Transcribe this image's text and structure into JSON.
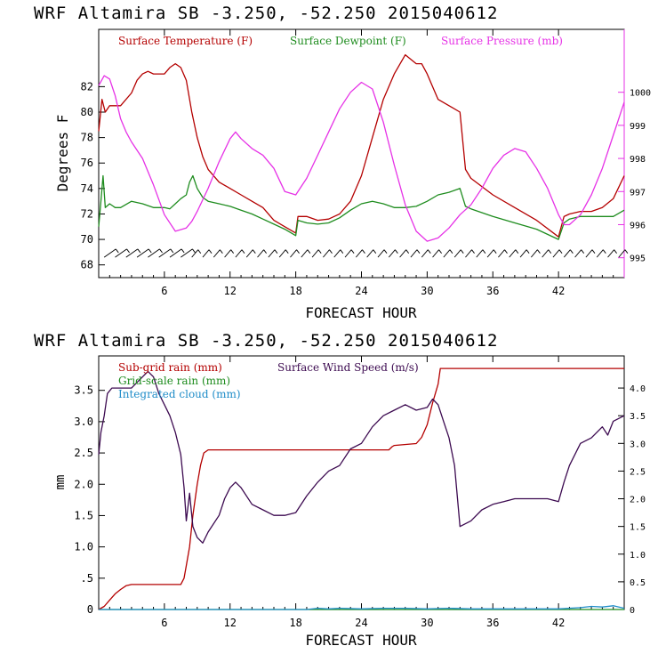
{
  "chart_data": [
    {
      "type": "line",
      "title": "WRF   Altamira  SB  -3.250, -52.250  2015040612",
      "xlabel": "FORECAST HOUR",
      "ylabel": "Degrees F",
      "xlim": [
        0,
        48
      ],
      "ylim": [
        67,
        86.5
      ],
      "y2lim": [
        994.4,
        1001.9
      ],
      "x_ticks": [
        6,
        12,
        18,
        24,
        30,
        36,
        42
      ],
      "y_ticks": [
        68,
        70,
        72,
        74,
        76,
        78,
        80,
        82
      ],
      "y2_ticks": [
        995,
        996,
        997,
        998,
        999,
        1000
      ],
      "y2_label": "",
      "colors": {
        "temperature": "#b40000",
        "dewpoint": "#1e8c1e",
        "pressure": "#e632e6"
      },
      "series": [
        {
          "name": "Surface Temperature (F)",
          "color": "#b40000",
          "axis": "left",
          "x": [
            0,
            0.3,
            0.6,
            1,
            1.5,
            2,
            3,
            3.5,
            4,
            4.5,
            5,
            5.5,
            6,
            6.5,
            7,
            7.5,
            8,
            8.5,
            9,
            9.5,
            10,
            11,
            12,
            13,
            14,
            15,
            16,
            17,
            18,
            18.2,
            19,
            20,
            21,
            22,
            23,
            24,
            25,
            26,
            27,
            28,
            29,
            29.5,
            30,
            30.5,
            31,
            32,
            33,
            33.5,
            34,
            36,
            38,
            40,
            42,
            42.5,
            43,
            44,
            45,
            46,
            47,
            48
          ],
          "y": [
            78.5,
            81,
            80,
            80.5,
            80.5,
            80.5,
            81.5,
            82.5,
            83,
            83.2,
            83,
            83,
            83,
            83.5,
            83.8,
            83.5,
            82.5,
            80,
            78,
            76.5,
            75.5,
            74.5,
            74,
            73.5,
            73,
            72.5,
            71.5,
            71,
            70.5,
            71.8,
            71.8,
            71.5,
            71.6,
            72,
            73,
            75,
            78,
            81,
            83,
            84.5,
            83.8,
            83.8,
            83,
            82,
            81,
            80.5,
            80,
            75.5,
            74.8,
            73.5,
            72.5,
            71.5,
            70.2,
            71.8,
            72,
            72.2,
            72.2,
            72.5,
            73.2,
            75
          ]
        },
        {
          "name": "Surface Dewpoint (F)",
          "color": "#1e8c1e",
          "axis": "left",
          "x": [
            0,
            0.2,
            0.4,
            0.6,
            1,
            1.5,
            2,
            3,
            4,
            5,
            6,
            6.5,
            7,
            7.5,
            8,
            8.3,
            8.6,
            9,
            9.5,
            10,
            11,
            12,
            13,
            14,
            15,
            16,
            17,
            18,
            18.2,
            19,
            20,
            21,
            22,
            23,
            24,
            25,
            26,
            27,
            28,
            29,
            30,
            31,
            32,
            33,
            33.5,
            34,
            36,
            38,
            40,
            42,
            42.5,
            43,
            44,
            45,
            46,
            47,
            48
          ],
          "y": [
            71,
            73,
            75,
            72.5,
            72.8,
            72.5,
            72.5,
            73,
            72.8,
            72.5,
            72.5,
            72.4,
            72.8,
            73.2,
            73.5,
            74.5,
            75,
            74,
            73.3,
            73,
            72.8,
            72.6,
            72.3,
            72,
            71.6,
            71.2,
            70.8,
            70.3,
            71.5,
            71.3,
            71.2,
            71.3,
            71.7,
            72.3,
            72.8,
            73,
            72.8,
            72.5,
            72.5,
            72.6,
            73,
            73.5,
            73.7,
            74,
            72.6,
            72.4,
            71.8,
            71.3,
            70.8,
            70,
            71.3,
            71.6,
            71.8,
            71.8,
            71.8,
            71.8,
            72.3
          ]
        },
        {
          "name": "Surface Pressure (mb)",
          "color": "#e632e6",
          "axis": "right",
          "x": [
            0,
            0.5,
            1,
            1.5,
            2,
            2.5,
            3,
            4,
            5,
            6,
            7,
            8,
            8.5,
            9,
            10,
            11,
            12,
            12.5,
            13,
            14,
            15,
            16,
            17,
            18,
            19,
            20,
            21,
            22,
            23,
            24,
            25,
            26,
            27,
            28,
            29,
            30,
            31,
            32,
            33,
            34,
            35,
            36,
            37,
            38,
            39,
            40,
            41,
            42,
            42.5,
            43,
            44,
            45,
            46,
            47,
            48
          ],
          "y": [
            1000.2,
            1000.5,
            1000.4,
            999.9,
            999.2,
            998.8,
            998.5,
            998,
            997.2,
            996.3,
            995.8,
            995.9,
            996.1,
            996.4,
            997.1,
            997.9,
            998.6,
            998.8,
            998.6,
            998.3,
            998.1,
            997.7,
            997,
            996.9,
            997.4,
            998.1,
            998.8,
            999.5,
            1000,
            1000.3,
            1000.1,
            999.1,
            997.8,
            996.6,
            995.8,
            995.5,
            995.6,
            995.9,
            996.3,
            996.6,
            997.1,
            997.7,
            998.1,
            998.3,
            998.2,
            997.7,
            997.1,
            996.3,
            996,
            996,
            996.3,
            996.9,
            997.7,
            998.7,
            999.7
          ]
        }
      ]
    },
    {
      "type": "line",
      "title": "WRF   Altamira  SB  -3.250, -52.250  2015040612",
      "xlabel": "FORECAST HOUR",
      "ylabel": "mm",
      "xlim": [
        0,
        48
      ],
      "ylim": [
        0,
        4.05
      ],
      "y2lim": [
        0,
        4.58
      ],
      "x_ticks": [
        6,
        12,
        18,
        24,
        30,
        36,
        42
      ],
      "y_ticks": [
        0,
        0.5,
        1.0,
        1.5,
        2.0,
        2.5,
        3.0,
        3.5
      ],
      "y_tick_labels": [
        "0",
        ".5",
        "1.0",
        "1.5",
        "2.0",
        "2.5",
        "3.0",
        "3.5"
      ],
      "y2_ticks": [
        0,
        0.5,
        1.0,
        1.5,
        2.0,
        2.5,
        3.0,
        3.5,
        4.0
      ],
      "y2_tick_labels": [
        "0",
        "0.5",
        "1.0",
        "1.5",
        "2.0",
        "2.5",
        "3.0",
        "3.5",
        "4.0"
      ],
      "colors": {
        "subgrid": "#b40000",
        "gridscale": "#1e8c1e",
        "cloud": "#1e8cc8",
        "wind": "#3c0a50"
      },
      "series": [
        {
          "name": "Sub-grid rain (mm)",
          "color": "#b40000",
          "axis": "left",
          "x": [
            0,
            0.5,
            1,
            1.5,
            2,
            2.5,
            3,
            5,
            7.5,
            7.8,
            8,
            8.3,
            8.6,
            9,
            9.3,
            9.6,
            10,
            20,
            26.5,
            26.8,
            27,
            29,
            29.5,
            30,
            30.5,
            31,
            31.2,
            35,
            48
          ],
          "y": [
            0,
            0.05,
            0.15,
            0.25,
            0.32,
            0.38,
            0.4,
            0.4,
            0.4,
            0.5,
            0.7,
            1.0,
            1.5,
            2.0,
            2.3,
            2.5,
            2.55,
            2.55,
            2.55,
            2.6,
            2.62,
            2.65,
            2.75,
            2.95,
            3.3,
            3.6,
            3.85,
            3.85,
            3.85
          ]
        },
        {
          "name": "Grid-scale rain (mm)",
          "color": "#1e8c1e",
          "axis": "left",
          "x": [
            0,
            48
          ],
          "y": [
            0,
            0
          ]
        },
        {
          "name": "Integrated cloud (mm)",
          "color": "#1e8cc8",
          "axis": "left",
          "x": [
            0,
            19,
            20,
            21,
            22,
            24,
            26,
            28,
            30,
            32,
            34,
            36,
            38,
            40,
            42,
            44,
            45,
            46,
            47,
            48
          ],
          "y": [
            0,
            0,
            0.02,
            0.01,
            0.02,
            0.01,
            0.02,
            0.02,
            0.01,
            0.02,
            0.01,
            0.01,
            0.01,
            0.01,
            0.01,
            0.03,
            0.05,
            0.04,
            0.06,
            0.02
          ]
        },
        {
          "name": "Surface Wind Speed (m/s)",
          "color": "#3c0a50",
          "axis": "right",
          "x": [
            0,
            0.2,
            0.5,
            0.8,
            1.2,
            2,
            3,
            4,
            4.5,
            5,
            5.5,
            6,
            6.5,
            7,
            7.5,
            7.8,
            8,
            8.3,
            8.6,
            9,
            9.5,
            10,
            11,
            11.5,
            12,
            12.5,
            13,
            14,
            15,
            16,
            17,
            18,
            19,
            20,
            21,
            22,
            23,
            24,
            25,
            26,
            27,
            28,
            29,
            30,
            30.5,
            31,
            31.5,
            32,
            32.5,
            33,
            34,
            35,
            36,
            37,
            38,
            39,
            40,
            41,
            42,
            42.5,
            43,
            44,
            45,
            46,
            46.5,
            47,
            48
          ],
          "y": [
            2.8,
            3.2,
            3.5,
            3.9,
            4.0,
            4.0,
            4.0,
            4.2,
            4.3,
            4.2,
            3.9,
            3.7,
            3.5,
            3.2,
            2.8,
            2.2,
            1.6,
            2.1,
            1.5,
            1.3,
            1.2,
            1.4,
            1.7,
            2.0,
            2.2,
            2.3,
            2.2,
            1.9,
            1.8,
            1.7,
            1.7,
            1.75,
            2.05,
            2.3,
            2.5,
            2.6,
            2.9,
            3.0,
            3.3,
            3.5,
            3.6,
            3.7,
            3.6,
            3.65,
            3.8,
            3.7,
            3.4,
            3.1,
            2.6,
            1.5,
            1.6,
            1.8,
            1.9,
            1.95,
            2.0,
            2.0,
            2.0,
            2.0,
            1.95,
            2.3,
            2.6,
            3.0,
            3.1,
            3.3,
            3.15,
            3.4,
            3.5
          ]
        }
      ]
    }
  ]
}
